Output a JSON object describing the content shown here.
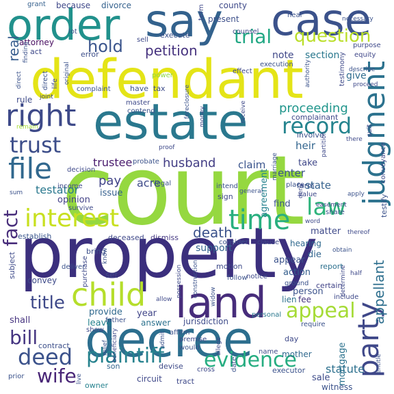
{
  "words": [
    {
      "text": "court",
      "color": "#95d840"
    },
    {
      "text": "property",
      "color": "#3b2f7d"
    },
    {
      "text": "defendant",
      "color": "#e4e417"
    },
    {
      "text": "estate",
      "color": "#2a788e"
    },
    {
      "text": "decree",
      "color": "#2c6e8e"
    },
    {
      "text": "case",
      "color": "#3b528b"
    },
    {
      "text": "order",
      "color": "#21918c"
    },
    {
      "text": "say",
      "color": "#33628d"
    },
    {
      "text": "land",
      "color": "#472d7b"
    },
    {
      "text": "right",
      "color": "#3e4a89"
    },
    {
      "text": "judgment",
      "color": "#2c728e"
    },
    {
      "text": "child",
      "color": "#b5de2b"
    },
    {
      "text": "file",
      "color": "#31688e"
    },
    {
      "text": "party",
      "color": "#3f4889"
    },
    {
      "text": "time",
      "color": "#29af7f"
    },
    {
      "text": "interest",
      "color": "#c8e020"
    },
    {
      "text": "record",
      "color": "#25848e"
    },
    {
      "text": "question",
      "color": "#bade28"
    },
    {
      "text": "trust",
      "color": "#3d4e8a"
    },
    {
      "text": "deed",
      "color": "#3b528b"
    },
    {
      "text": "law",
      "color": "#2fb47c"
    },
    {
      "text": "trial",
      "color": "#22a884"
    },
    {
      "text": "appeal",
      "color": "#a5db36"
    },
    {
      "text": "evidence",
      "color": "#26ad81"
    },
    {
      "text": "plaintiff",
      "color": "#26828e"
    },
    {
      "text": "wife",
      "color": "#482576"
    },
    {
      "text": "bill",
      "color": "#453581"
    },
    {
      "text": "title",
      "color": "#3e4989"
    },
    {
      "text": "fact",
      "color": "#472c7a"
    },
    {
      "text": "petition",
      "color": "#46327e"
    },
    {
      "text": "hold",
      "color": "#3a548c"
    },
    {
      "text": "proceeding",
      "color": "#1f958b"
    },
    {
      "text": "death",
      "color": "#3b528b"
    },
    {
      "text": "appellant",
      "color": "#2e6f8e"
    },
    {
      "text": "husband",
      "color": "#433e85"
    },
    {
      "text": "trustee",
      "color": "#481a6c"
    },
    {
      "text": "testator",
      "color": "#2a788e"
    },
    {
      "text": "acre",
      "color": "#3e4a89"
    },
    {
      "text": "pay",
      "color": "#404387"
    },
    {
      "text": "claim",
      "color": "#3a548c"
    },
    {
      "text": "heir",
      "color": "#32658e"
    },
    {
      "text": "statute",
      "color": "#2d708e"
    },
    {
      "text": "enter",
      "color": "#3b528b"
    },
    {
      "text": "state",
      "color": "#34618d"
    },
    {
      "text": "real",
      "color": "#365c8d"
    },
    {
      "text": "note",
      "color": "#3f4788"
    },
    {
      "text": "section",
      "color": "#2a788e"
    },
    {
      "text": "give",
      "color": "#2f6c8e"
    },
    {
      "text": "attorney",
      "color": "#470d60"
    },
    {
      "text": "present",
      "color": "#3c4f8a"
    },
    {
      "text": "county",
      "color": "#3e4989"
    },
    {
      "text": "mortgage",
      "color": "#2c728e"
    },
    {
      "text": "issue",
      "color": "#345f8d"
    },
    {
      "text": "find",
      "color": "#3b528b"
    },
    {
      "text": "opinion",
      "color": "#424186"
    },
    {
      "text": "support",
      "color": "#33628d"
    },
    {
      "text": "establish",
      "color": "#39568c"
    },
    {
      "text": "deceased",
      "color": "#3f4889"
    },
    {
      "text": "dismiss",
      "color": "#453882"
    },
    {
      "text": "take",
      "color": "#3f4788"
    },
    {
      "text": "agreement",
      "color": "#26828e"
    },
    {
      "text": "person",
      "color": "#3b528b"
    },
    {
      "text": "matter",
      "color": "#3e4989"
    },
    {
      "text": "appear",
      "color": "#3b528b"
    },
    {
      "text": "die",
      "color": "#32658e"
    },
    {
      "text": "action",
      "color": "#355f8d"
    },
    {
      "text": "hearing",
      "color": "#30698e"
    },
    {
      "text": "lien",
      "color": "#2d708e"
    },
    {
      "text": "fee",
      "color": "#46337f"
    },
    {
      "text": "convey",
      "color": "#3e4a89"
    },
    {
      "text": "year",
      "color": "#404588"
    },
    {
      "text": "answer",
      "color": "#2c728e"
    },
    {
      "text": "jurisdiction",
      "color": "#3e4c8a"
    },
    {
      "text": "provide",
      "color": "#30698e"
    },
    {
      "text": "leave",
      "color": "#26828e"
    },
    {
      "text": "shall",
      "color": "#46337f"
    },
    {
      "text": "set",
      "color": "#3f4788"
    },
    {
      "text": "bring",
      "color": "#3c4f8a"
    },
    {
      "text": "subject",
      "color": "#3e4a89"
    },
    {
      "text": "motion",
      "color": "#3e4a89"
    },
    {
      "text": "report",
      "color": "#2d708e"
    },
    {
      "text": "certain",
      "color": "#404387"
    },
    {
      "text": "sale",
      "color": "#3e4c8a"
    },
    {
      "text": "contract",
      "color": "#3c4f8a"
    },
    {
      "text": "executor",
      "color": "#3b528b"
    },
    {
      "text": "son",
      "color": "#32658e"
    },
    {
      "text": "devise",
      "color": "#3e4a89"
    },
    {
      "text": "circuit",
      "color": "#3f4889"
    },
    {
      "text": "owner",
      "color": "#26828e"
    },
    {
      "text": "tract",
      "color": "#3e4989"
    },
    {
      "text": "mother",
      "color": "#30698e"
    },
    {
      "text": "witness",
      "color": "#3b528b"
    },
    {
      "text": "act",
      "color": "#3e4989"
    },
    {
      "text": "error",
      "color": "#3d4e8a"
    },
    {
      "text": "execute",
      "color": "#3b528b"
    },
    {
      "text": "sell",
      "color": "#3e4989"
    },
    {
      "text": "because",
      "color": "#3f4889"
    },
    {
      "text": "divorce",
      "color": "#34618d"
    },
    {
      "text": "grant",
      "color": "#35608d"
    },
    {
      "text": "purpose",
      "color": "#3e4989"
    },
    {
      "text": "equity",
      "color": "#3f4788"
    },
    {
      "text": "execution",
      "color": "#3b528b"
    },
    {
      "text": "effect",
      "color": "#3e4989"
    },
    {
      "text": "power",
      "color": "#8fd744"
    },
    {
      "text": "tax",
      "color": "#3e4c8a"
    },
    {
      "text": "have",
      "color": "#3b528b"
    },
    {
      "text": "complaint",
      "color": "#3b528b"
    },
    {
      "text": "complainant",
      "color": "#3f4889"
    },
    {
      "text": "involve",
      "color": "#3b528b"
    },
    {
      "text": "master",
      "color": "#3e4989"
    },
    {
      "text": "rule",
      "color": "#3e4a89"
    },
    {
      "text": "direct",
      "color": "#3b528b"
    },
    {
      "text": "life",
      "color": "#3f4889"
    },
    {
      "text": "lot",
      "color": "#3b528b"
    },
    {
      "text": "counsel",
      "color": "#3f4889"
    },
    {
      "text": "hear",
      "color": "#3b528b"
    },
    {
      "text": "term",
      "color": "#3f4889"
    },
    {
      "text": "contend",
      "color": "#3b528b"
    },
    {
      "text": "decision",
      "color": "#3e4989"
    },
    {
      "text": "probate",
      "color": "#3b528b"
    },
    {
      "text": "income",
      "color": "#3e4989"
    },
    {
      "text": "legal",
      "color": "#3b528b"
    },
    {
      "text": "sign",
      "color": "#3e4989"
    },
    {
      "text": "intend",
      "color": "#3b528b"
    },
    {
      "text": "place",
      "color": "#3b528b"
    },
    {
      "text": "value",
      "color": "#3e4989"
    },
    {
      "text": "farm",
      "color": "#3b528b"
    },
    {
      "text": "share",
      "color": "#3b528b"
    },
    {
      "text": "survive",
      "color": "#3e4989"
    },
    {
      "text": "consider",
      "color": "#3b528b"
    },
    {
      "text": "clause",
      "color": "#3e4989"
    },
    {
      "text": "follow",
      "color": "#3b528b"
    },
    {
      "text": "notice",
      "color": "#3e4989"
    },
    {
      "text": "ground",
      "color": "#3b528b"
    },
    {
      "text": "include",
      "color": "#3e4989"
    },
    {
      "text": "require",
      "color": "#3b528b"
    },
    {
      "text": "day",
      "color": "#3e4989"
    },
    {
      "text": "personal",
      "color": "#2a788e"
    },
    {
      "text": "affirm",
      "color": "#3b528b"
    },
    {
      "text": "premise",
      "color": "#3e4989"
    },
    {
      "text": "would",
      "color": "#3b528b"
    },
    {
      "text": "name",
      "color": "#3e4989"
    },
    {
      "text": "date",
      "color": "#3b528b"
    },
    {
      "text": "show",
      "color": "#3e4989"
    },
    {
      "text": "deliver",
      "color": "#3b528b"
    },
    {
      "text": "purchase",
      "color": "#3e4989"
    },
    {
      "text": "father",
      "color": "#3b528b"
    },
    {
      "text": "cross",
      "color": "#3e4989"
    },
    {
      "text": "general",
      "color": "#3b528b"
    },
    {
      "text": "proof",
      "color": "#3e4989"
    },
    {
      "text": "testimony",
      "color": "#3e4989"
    },
    {
      "text": "testify",
      "color": "#3b528b"
    },
    {
      "text": "conveyance",
      "color": "#3e4989"
    },
    {
      "text": "prior",
      "color": "#3b528b"
    },
    {
      "text": "finding",
      "color": "#3b528b"
    },
    {
      "text": "money",
      "color": "#3e4989"
    },
    {
      "text": "foreclosure",
      "color": "#3b528b"
    },
    {
      "text": "proceed",
      "color": "#3e4989"
    },
    {
      "text": "describe",
      "color": "#3b528b"
    },
    {
      "text": "original",
      "color": "#3b528b"
    },
    {
      "text": "joint",
      "color": "#3e4989"
    },
    {
      "text": "remain",
      "color": "#a5db36"
    },
    {
      "text": "sum",
      "color": "#3b528b"
    },
    {
      "text": "deny",
      "color": "#3e4989"
    },
    {
      "text": "apply",
      "color": "#3b528b"
    },
    {
      "text": "thereof",
      "color": "#3e4989"
    },
    {
      "text": "construction",
      "color": "#3b528b"
    },
    {
      "text": "possession",
      "color": "#3e4989"
    },
    {
      "text": "widow",
      "color": "#3b528b"
    },
    {
      "text": "allow",
      "color": "#3e4989"
    },
    {
      "text": "admit",
      "color": "#3b528b"
    },
    {
      "text": "allege",
      "color": "#3e4989"
    },
    {
      "text": "relief",
      "color": "#3b528b"
    },
    {
      "text": "beneficiary",
      "color": "#3e4989"
    },
    {
      "text": "live",
      "color": "#3b528b"
    },
    {
      "text": "receive",
      "color": "#3e4989"
    },
    {
      "text": "marriage",
      "color": "#3b528b"
    },
    {
      "text": "partition",
      "color": "#3e4989"
    },
    {
      "text": "authority",
      "color": "#3b528b"
    },
    {
      "text": "determine",
      "color": "#3e4989"
    },
    {
      "text": "entitle",
      "color": "#3b528b"
    },
    {
      "text": "suit",
      "color": "#3e4989"
    },
    {
      "text": "necessary",
      "color": "#3b528b"
    },
    {
      "text": "easement",
      "color": "#3e4989"
    },
    {
      "text": "obtain",
      "color": "#3b528b"
    },
    {
      "text": "half",
      "color": "#3e4989"
    },
    {
      "text": "know",
      "color": "#3b528b"
    },
    {
      "text": "there",
      "color": "#3e4989"
    },
    {
      "text": "direct",
      "color": "#3b528b"
    },
    {
      "text": "word",
      "color": "#3e4989"
    }
  ]
}
